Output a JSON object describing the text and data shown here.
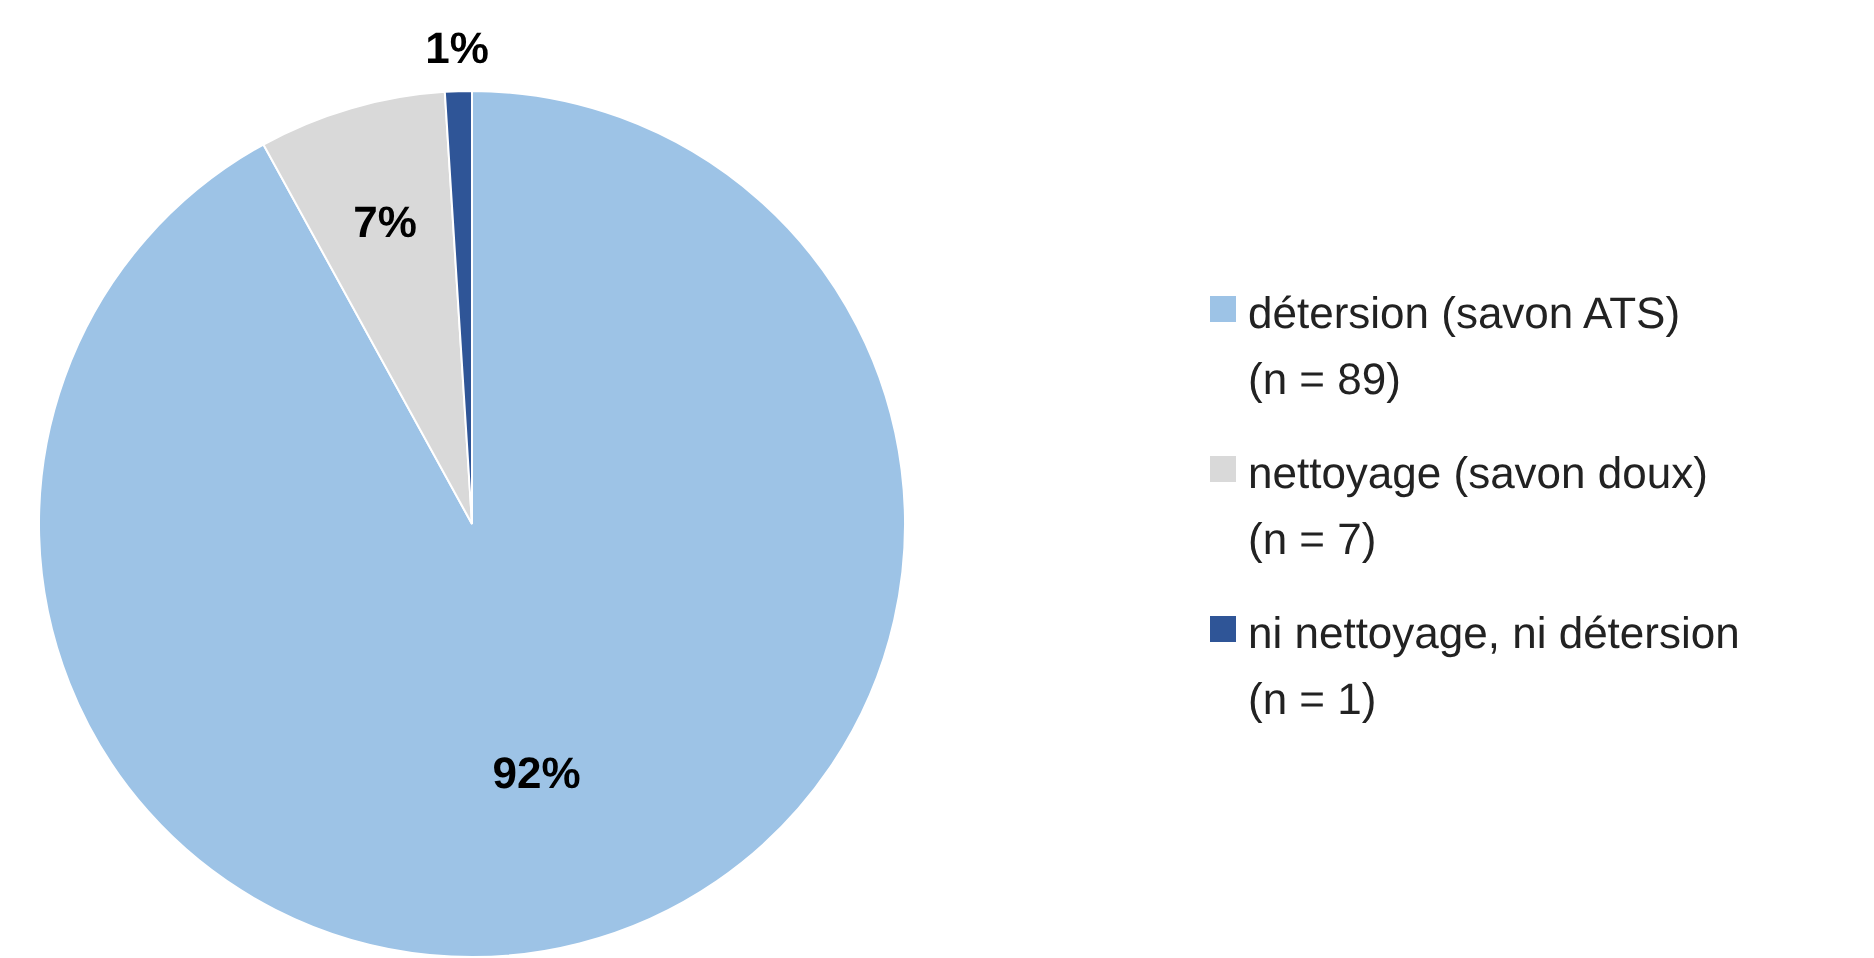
{
  "chart_data": {
    "type": "pie",
    "categories": [
      "détersion (savon ATS)\n(n = 89)",
      "nettoyage (savon doux)\n(n = 7)",
      "ni nettoyage, ni détersion\n(n = 1)"
    ],
    "values": [
      92,
      7,
      1
    ],
    "colors": [
      "#9dc3e6",
      "#d9d9d9",
      "#2f5597"
    ],
    "value_labels": [
      "92%",
      "7%",
      "1%"
    ],
    "legend": "right"
  }
}
